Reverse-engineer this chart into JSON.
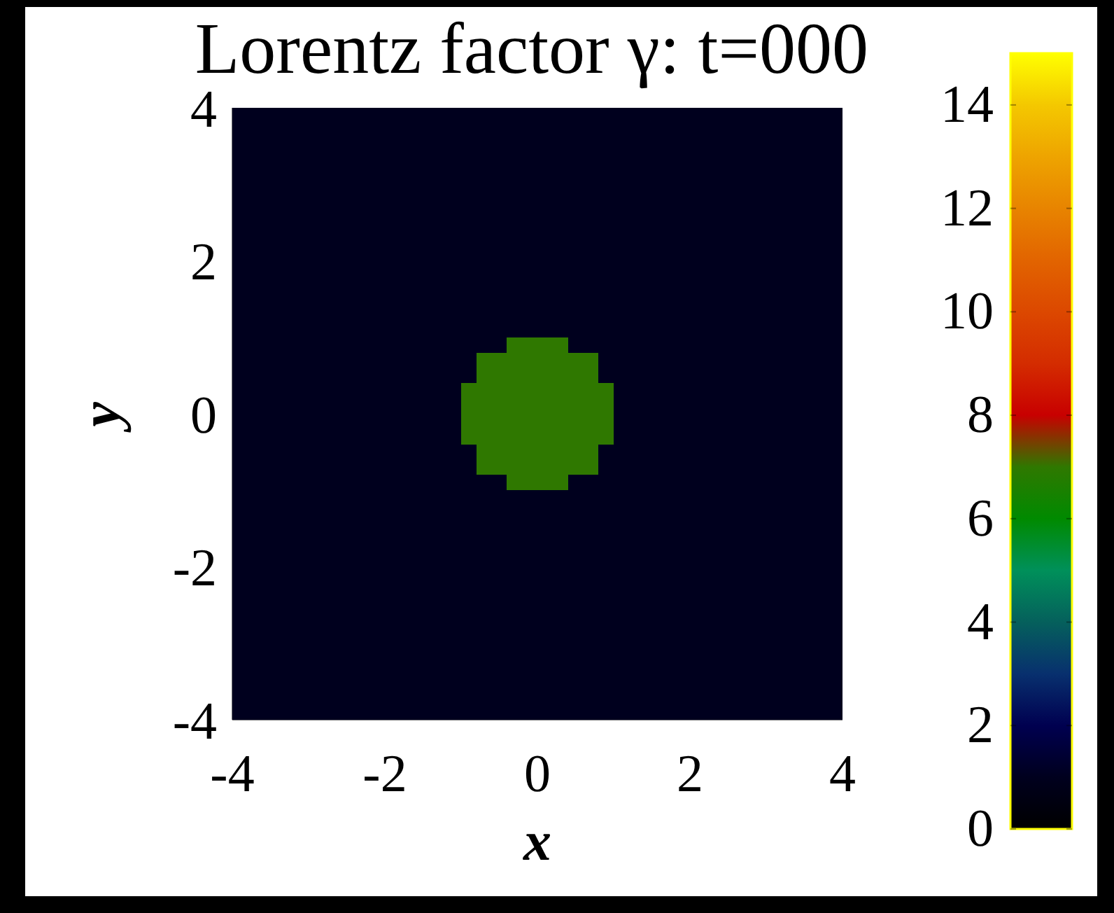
{
  "chart_data": {
    "type": "heatmap",
    "title": "Lorentz factor γ: t=000",
    "xlabel": "x",
    "ylabel": "y",
    "x": [
      -3.9,
      -3.7,
      -3.5,
      -3.3,
      -3.1,
      -2.9,
      -2.7,
      -2.5,
      -2.3,
      -2.1,
      -1.9,
      -1.7,
      -1.5,
      -1.3,
      -1.1,
      -0.9,
      -0.7,
      -0.5,
      -0.3,
      -0.1,
      0.1,
      0.3,
      0.5,
      0.7,
      0.9,
      1.1,
      1.3,
      1.5,
      1.7,
      1.9,
      2.1,
      2.3,
      2.5,
      2.7,
      2.9,
      3.1,
      3.3,
      3.5,
      3.7,
      3.9
    ],
    "cells": [
      [
        1,
        1,
        1,
        1,
        1,
        1,
        1,
        1,
        1,
        1,
        1,
        1,
        1,
        1,
        1,
        1,
        1,
        1,
        1,
        1,
        1,
        1,
        1,
        1,
        1,
        1,
        1,
        1,
        1,
        1,
        1,
        1,
        1,
        1,
        1,
        1,
        1,
        1,
        1,
        1
      ],
      [
        1,
        1,
        1,
        1,
        1,
        1,
        1,
        1,
        1,
        1,
        1,
        1,
        1,
        1,
        1,
        1,
        1,
        1,
        1,
        1,
        1,
        1,
        1,
        1,
        1,
        1,
        1,
        1,
        1,
        1,
        1,
        1,
        1,
        1,
        1,
        1,
        1,
        1,
        1,
        1
      ],
      [
        1,
        1,
        1,
        1,
        1,
        1,
        1,
        1,
        1,
        1,
        1,
        1,
        1,
        1,
        1,
        1,
        1,
        1,
        1,
        1,
        1,
        1,
        1,
        1,
        1,
        1,
        1,
        1,
        1,
        1,
        1,
        1,
        1,
        1,
        1,
        1,
        1,
        1,
        1,
        1
      ],
      [
        1,
        1,
        1,
        1,
        1,
        1,
        1,
        1,
        1,
        1,
        1,
        1,
        1,
        1,
        1,
        1,
        1,
        1,
        1,
        1,
        1,
        1,
        1,
        1,
        1,
        1,
        1,
        1,
        1,
        1,
        1,
        1,
        1,
        1,
        1,
        1,
        1,
        1,
        1,
        1
      ],
      [
        1,
        1,
        1,
        1,
        1,
        1,
        1,
        1,
        1,
        1,
        1,
        1,
        1,
        1,
        1,
        1,
        1,
        1,
        1,
        1,
        1,
        1,
        1,
        1,
        1,
        1,
        1,
        1,
        1,
        1,
        1,
        1,
        1,
        1,
        1,
        1,
        1,
        1,
        1,
        1
      ],
      [
        1,
        1,
        1,
        1,
        1,
        1,
        1,
        1,
        1,
        1,
        1,
        1,
        1,
        1,
        1,
        1,
        1,
        1,
        1,
        1,
        1,
        1,
        1,
        1,
        1,
        1,
        1,
        1,
        1,
        1,
        1,
        1,
        1,
        1,
        1,
        1,
        1,
        1,
        1,
        1
      ],
      [
        1,
        1,
        1,
        1,
        1,
        1,
        1,
        1,
        1,
        1,
        1,
        1,
        1,
        1,
        1,
        1,
        1,
        1,
        1,
        1,
        1,
        1,
        1,
        1,
        1,
        1,
        1,
        1,
        1,
        1,
        1,
        1,
        1,
        1,
        1,
        1,
        1,
        1,
        1,
        1
      ],
      [
        1,
        1,
        1,
        1,
        1,
        1,
        1,
        1,
        1,
        1,
        1,
        1,
        1,
        1,
        1,
        1,
        1,
        1,
        1,
        1,
        1,
        1,
        1,
        1,
        1,
        1,
        1,
        1,
        1,
        1,
        1,
        1,
        1,
        1,
        1,
        1,
        1,
        1,
        1,
        1
      ],
      [
        1,
        1,
        1,
        1,
        1,
        1,
        1,
        1,
        1,
        1,
        1,
        1,
        1,
        1,
        1,
        1,
        1,
        1,
        1,
        1,
        1,
        1,
        1,
        1,
        1,
        1,
        1,
        1,
        1,
        1,
        1,
        1,
        1,
        1,
        1,
        1,
        1,
        1,
        1,
        1
      ],
      [
        1,
        1,
        1,
        1,
        1,
        1,
        1,
        1,
        1,
        1,
        1,
        1,
        1,
        1,
        1,
        1,
        1,
        1,
        1,
        1,
        1,
        1,
        1,
        1,
        1,
        1,
        1,
        1,
        1,
        1,
        1,
        1,
        1,
        1,
        1,
        1,
        1,
        1,
        1,
        1
      ],
      [
        1,
        1,
        1,
        1,
        1,
        1,
        1,
        1,
        1,
        1,
        1,
        1,
        1,
        1,
        1,
        1,
        1,
        1,
        1,
        1,
        1,
        1,
        1,
        1,
        1,
        1,
        1,
        1,
        1,
        1,
        1,
        1,
        1,
        1,
        1,
        1,
        1,
        1,
        1,
        1
      ],
      [
        1,
        1,
        1,
        1,
        1,
        1,
        1,
        1,
        1,
        1,
        1,
        1,
        1,
        1,
        1,
        1,
        1,
        1,
        1,
        1,
        1,
        1,
        1,
        1,
        1,
        1,
        1,
        1,
        1,
        1,
        1,
        1,
        1,
        1,
        1,
        1,
        1,
        1,
        1,
        1
      ],
      [
        1,
        1,
        1,
        1,
        1,
        1,
        1,
        1,
        1,
        1,
        1,
        1,
        1,
        1,
        1,
        1,
        1,
        1,
        1,
        1,
        1,
        1,
        1,
        1,
        1,
        1,
        1,
        1,
        1,
        1,
        1,
        1,
        1,
        1,
        1,
        1,
        1,
        1,
        1,
        1
      ],
      [
        1,
        1,
        1,
        1,
        1,
        1,
        1,
        1,
        1,
        1,
        1,
        1,
        1,
        1,
        1,
        1,
        1,
        1,
        1,
        1,
        1,
        1,
        1,
        1,
        1,
        1,
        1,
        1,
        1,
        1,
        1,
        1,
        1,
        1,
        1,
        1,
        1,
        1,
        1,
        1
      ],
      [
        1,
        1,
        1,
        1,
        1,
        1,
        1,
        1,
        1,
        1,
        1,
        1,
        1,
        1,
        1,
        1,
        1,
        1,
        1,
        1,
        1,
        1,
        1,
        1,
        1,
        1,
        1,
        1,
        1,
        1,
        1,
        1,
        1,
        1,
        1,
        1,
        1,
        1,
        1,
        1
      ],
      [
        1,
        1,
        1,
        1,
        1,
        1,
        1,
        1,
        1,
        1,
        1,
        1,
        1,
        1,
        1,
        1,
        1,
        1,
        7,
        7,
        7,
        7,
        1,
        1,
        1,
        1,
        1,
        1,
        1,
        1,
        1,
        1,
        1,
        1,
        1,
        1,
        1,
        1,
        1,
        1
      ],
      [
        1,
        1,
        1,
        1,
        1,
        1,
        1,
        1,
        1,
        1,
        1,
        1,
        1,
        1,
        1,
        1,
        7,
        7,
        7,
        7,
        7,
        7,
        7,
        7,
        1,
        1,
        1,
        1,
        1,
        1,
        1,
        1,
        1,
        1,
        1,
        1,
        1,
        1,
        1,
        1
      ],
      [
        1,
        1,
        1,
        1,
        1,
        1,
        1,
        1,
        1,
        1,
        1,
        1,
        1,
        1,
        1,
        1,
        7,
        7,
        7,
        7,
        7,
        7,
        7,
        7,
        1,
        1,
        1,
        1,
        1,
        1,
        1,
        1,
        1,
        1,
        1,
        1,
        1,
        1,
        1,
        1
      ],
      [
        1,
        1,
        1,
        1,
        1,
        1,
        1,
        1,
        1,
        1,
        1,
        1,
        1,
        1,
        1,
        7,
        7,
        7,
        7,
        7,
        7,
        7,
        7,
        7,
        7,
        1,
        1,
        1,
        1,
        1,
        1,
        1,
        1,
        1,
        1,
        1,
        1,
        1,
        1,
        1
      ],
      [
        1,
        1,
        1,
        1,
        1,
        1,
        1,
        1,
        1,
        1,
        1,
        1,
        1,
        1,
        1,
        7,
        7,
        7,
        7,
        7,
        7,
        7,
        7,
        7,
        7,
        1,
        1,
        1,
        1,
        1,
        1,
        1,
        1,
        1,
        1,
        1,
        1,
        1,
        1,
        1
      ],
      [
        1,
        1,
        1,
        1,
        1,
        1,
        1,
        1,
        1,
        1,
        1,
        1,
        1,
        1,
        1,
        7,
        7,
        7,
        7,
        7,
        7,
        7,
        7,
        7,
        7,
        1,
        1,
        1,
        1,
        1,
        1,
        1,
        1,
        1,
        1,
        1,
        1,
        1,
        1,
        1
      ],
      [
        1,
        1,
        1,
        1,
        1,
        1,
        1,
        1,
        1,
        1,
        1,
        1,
        1,
        1,
        1,
        7,
        7,
        7,
        7,
        7,
        7,
        7,
        7,
        7,
        7,
        1,
        1,
        1,
        1,
        1,
        1,
        1,
        1,
        1,
        1,
        1,
        1,
        1,
        1,
        1
      ],
      [
        1,
        1,
        1,
        1,
        1,
        1,
        1,
        1,
        1,
        1,
        1,
        1,
        1,
        1,
        1,
        1,
        7,
        7,
        7,
        7,
        7,
        7,
        7,
        7,
        1,
        1,
        1,
        1,
        1,
        1,
        1,
        1,
        1,
        1,
        1,
        1,
        1,
        1,
        1,
        1
      ],
      [
        1,
        1,
        1,
        1,
        1,
        1,
        1,
        1,
        1,
        1,
        1,
        1,
        1,
        1,
        1,
        1,
        7,
        7,
        7,
        7,
        7,
        7,
        7,
        7,
        1,
        1,
        1,
        1,
        1,
        1,
        1,
        1,
        1,
        1,
        1,
        1,
        1,
        1,
        1,
        1
      ],
      [
        1,
        1,
        1,
        1,
        1,
        1,
        1,
        1,
        1,
        1,
        1,
        1,
        1,
        1,
        1,
        1,
        1,
        1,
        7,
        7,
        7,
        7,
        1,
        1,
        1,
        1,
        1,
        1,
        1,
        1,
        1,
        1,
        1,
        1,
        1,
        1,
        1,
        1,
        1,
        1
      ],
      [
        1,
        1,
        1,
        1,
        1,
        1,
        1,
        1,
        1,
        1,
        1,
        1,
        1,
        1,
        1,
        1,
        1,
        1,
        1,
        1,
        1,
        1,
        1,
        1,
        1,
        1,
        1,
        1,
        1,
        1,
        1,
        1,
        1,
        1,
        1,
        1,
        1,
        1,
        1,
        1
      ],
      [
        1,
        1,
        1,
        1,
        1,
        1,
        1,
        1,
        1,
        1,
        1,
        1,
        1,
        1,
        1,
        1,
        1,
        1,
        1,
        1,
        1,
        1,
        1,
        1,
        1,
        1,
        1,
        1,
        1,
        1,
        1,
        1,
        1,
        1,
        1,
        1,
        1,
        1,
        1,
        1
      ],
      [
        1,
        1,
        1,
        1,
        1,
        1,
        1,
        1,
        1,
        1,
        1,
        1,
        1,
        1,
        1,
        1,
        1,
        1,
        1,
        1,
        1,
        1,
        1,
        1,
        1,
        1,
        1,
        1,
        1,
        1,
        1,
        1,
        1,
        1,
        1,
        1,
        1,
        1,
        1,
        1
      ],
      [
        1,
        1,
        1,
        1,
        1,
        1,
        1,
        1,
        1,
        1,
        1,
        1,
        1,
        1,
        1,
        1,
        1,
        1,
        1,
        1,
        1,
        1,
        1,
        1,
        1,
        1,
        1,
        1,
        1,
        1,
        1,
        1,
        1,
        1,
        1,
        1,
        1,
        1,
        1,
        1
      ],
      [
        1,
        1,
        1,
        1,
        1,
        1,
        1,
        1,
        1,
        1,
        1,
        1,
        1,
        1,
        1,
        1,
        1,
        1,
        1,
        1,
        1,
        1,
        1,
        1,
        1,
        1,
        1,
        1,
        1,
        1,
        1,
        1,
        1,
        1,
        1,
        1,
        1,
        1,
        1,
        1
      ],
      [
        1,
        1,
        1,
        1,
        1,
        1,
        1,
        1,
        1,
        1,
        1,
        1,
        1,
        1,
        1,
        1,
        1,
        1,
        1,
        1,
        1,
        1,
        1,
        1,
        1,
        1,
        1,
        1,
        1,
        1,
        1,
        1,
        1,
        1,
        1,
        1,
        1,
        1,
        1,
        1
      ],
      [
        1,
        1,
        1,
        1,
        1,
        1,
        1,
        1,
        1,
        1,
        1,
        1,
        1,
        1,
        1,
        1,
        1,
        1,
        1,
        1,
        1,
        1,
        1,
        1,
        1,
        1,
        1,
        1,
        1,
        1,
        1,
        1,
        1,
        1,
        1,
        1,
        1,
        1,
        1,
        1
      ],
      [
        1,
        1,
        1,
        1,
        1,
        1,
        1,
        1,
        1,
        1,
        1,
        1,
        1,
        1,
        1,
        1,
        1,
        1,
        1,
        1,
        1,
        1,
        1,
        1,
        1,
        1,
        1,
        1,
        1,
        1,
        1,
        1,
        1,
        1,
        1,
        1,
        1,
        1,
        1,
        1
      ],
      [
        1,
        1,
        1,
        1,
        1,
        1,
        1,
        1,
        1,
        1,
        1,
        1,
        1,
        1,
        1,
        1,
        1,
        1,
        1,
        1,
        1,
        1,
        1,
        1,
        1,
        1,
        1,
        1,
        1,
        1,
        1,
        1,
        1,
        1,
        1,
        1,
        1,
        1,
        1,
        1
      ],
      [
        1,
        1,
        1,
        1,
        1,
        1,
        1,
        1,
        1,
        1,
        1,
        1,
        1,
        1,
        1,
        1,
        1,
        1,
        1,
        1,
        1,
        1,
        1,
        1,
        1,
        1,
        1,
        1,
        1,
        1,
        1,
        1,
        1,
        1,
        1,
        1,
        1,
        1,
        1,
        1
      ],
      [
        1,
        1,
        1,
        1,
        1,
        1,
        1,
        1,
        1,
        1,
        1,
        1,
        1,
        1,
        1,
        1,
        1,
        1,
        1,
        1,
        1,
        1,
        1,
        1,
        1,
        1,
        1,
        1,
        1,
        1,
        1,
        1,
        1,
        1,
        1,
        1,
        1,
        1,
        1,
        1
      ],
      [
        1,
        1,
        1,
        1,
        1,
        1,
        1,
        1,
        1,
        1,
        1,
        1,
        1,
        1,
        1,
        1,
        1,
        1,
        1,
        1,
        1,
        1,
        1,
        1,
        1,
        1,
        1,
        1,
        1,
        1,
        1,
        1,
        1,
        1,
        1,
        1,
        1,
        1,
        1,
        1
      ],
      [
        1,
        1,
        1,
        1,
        1,
        1,
        1,
        1,
        1,
        1,
        1,
        1,
        1,
        1,
        1,
        1,
        1,
        1,
        1,
        1,
        1,
        1,
        1,
        1,
        1,
        1,
        1,
        1,
        1,
        1,
        1,
        1,
        1,
        1,
        1,
        1,
        1,
        1,
        1,
        1
      ],
      [
        1,
        1,
        1,
        1,
        1,
        1,
        1,
        1,
        1,
        1,
        1,
        1,
        1,
        1,
        1,
        1,
        1,
        1,
        1,
        1,
        1,
        1,
        1,
        1,
        1,
        1,
        1,
        1,
        1,
        1,
        1,
        1,
        1,
        1,
        1,
        1,
        1,
        1,
        1,
        1
      ],
      [
        1,
        1,
        1,
        1,
        1,
        1,
        1,
        1,
        1,
        1,
        1,
        1,
        1,
        1,
        1,
        1,
        1,
        1,
        1,
        1,
        1,
        1,
        1,
        1,
        1,
        1,
        1,
        1,
        1,
        1,
        1,
        1,
        1,
        1,
        1,
        1,
        1,
        1,
        1,
        1
      ]
    ],
    "xlim": [
      -4,
      4
    ],
    "xticks": [
      -4,
      -2,
      0,
      2,
      4
    ],
    "ylim": [
      -4,
      4
    ],
    "yticks": [
      -4,
      -2,
      0,
      2,
      4
    ],
    "clim": [
      0,
      15
    ],
    "cticks": [
      0,
      2,
      4,
      6,
      8,
      10,
      12,
      14
    ],
    "colors": [
      "#000000",
      "#00001e",
      "#000050",
      "#08306e",
      "#05605c",
      "#00905a",
      "#008a00",
      "#2f7800",
      "#c80000",
      "#d42c00",
      "#dc4800",
      "#e26400",
      "#e88400",
      "#eea400",
      "#f4c800",
      "#ffff00"
    ]
  }
}
